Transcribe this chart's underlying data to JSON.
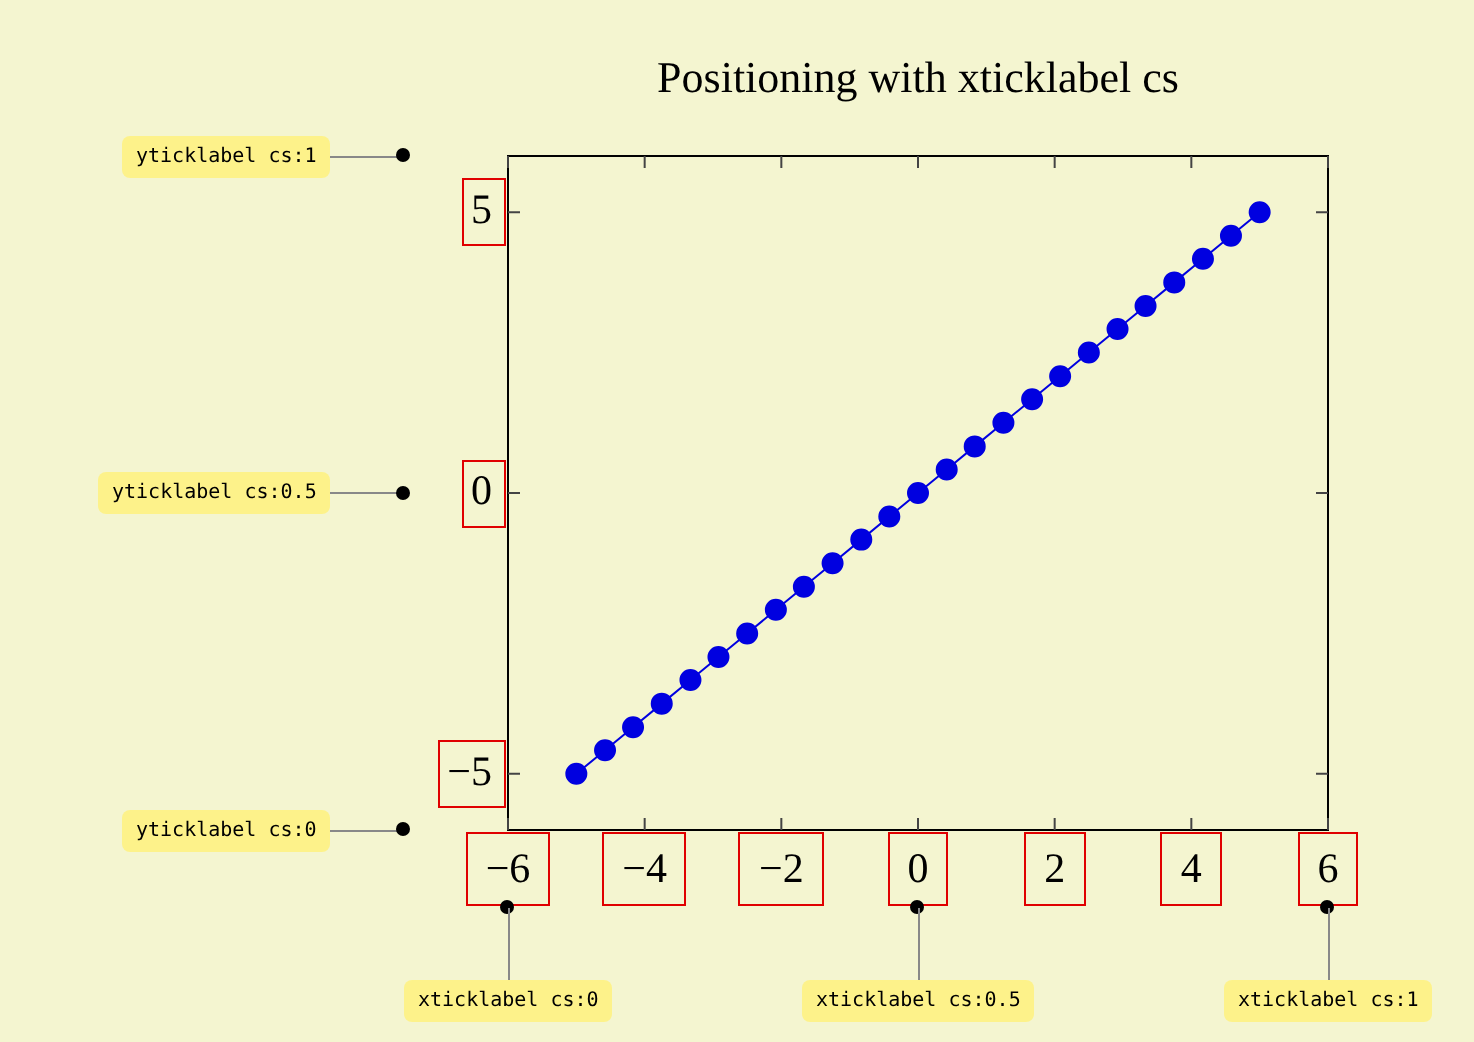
{
  "chart_data": {
    "type": "line",
    "title": "Positioning with xticklabel cs",
    "x": [
      -5,
      -4.58,
      -4.17,
      -3.75,
      -3.33,
      -2.92,
      -2.5,
      -2.08,
      -1.67,
      -1.25,
      -0.83,
      -0.42,
      0,
      0.42,
      0.83,
      1.25,
      1.67,
      2.08,
      2.5,
      2.92,
      3.33,
      3.75,
      4.17,
      4.58,
      5
    ],
    "series": [
      {
        "color": "#0000e0",
        "values": [
          -5,
          -4.58,
          -4.17,
          -3.75,
          -3.33,
          -2.92,
          -2.5,
          -2.08,
          -1.67,
          -1.25,
          -0.83,
          -0.42,
          0,
          0.42,
          0.83,
          1.25,
          1.67,
          2.08,
          2.5,
          2.92,
          3.33,
          3.75,
          4.17,
          4.58,
          5
        ]
      }
    ],
    "xlim": [
      -6,
      6
    ],
    "xticks": [
      -6,
      -4,
      -2,
      0,
      2,
      4,
      6
    ],
    "ylim": [
      -6,
      6
    ],
    "yticks": [
      -5,
      0,
      5
    ],
    "marker": "circle",
    "line_style": "solid",
    "grid": false,
    "legend": false,
    "annotations": [
      "yticklabel cs:1",
      "yticklabel cs:0.5",
      "yticklabel cs:0",
      "xticklabel cs:0",
      "xticklabel cs:0.5",
      "xticklabel cs:1"
    ]
  }
}
